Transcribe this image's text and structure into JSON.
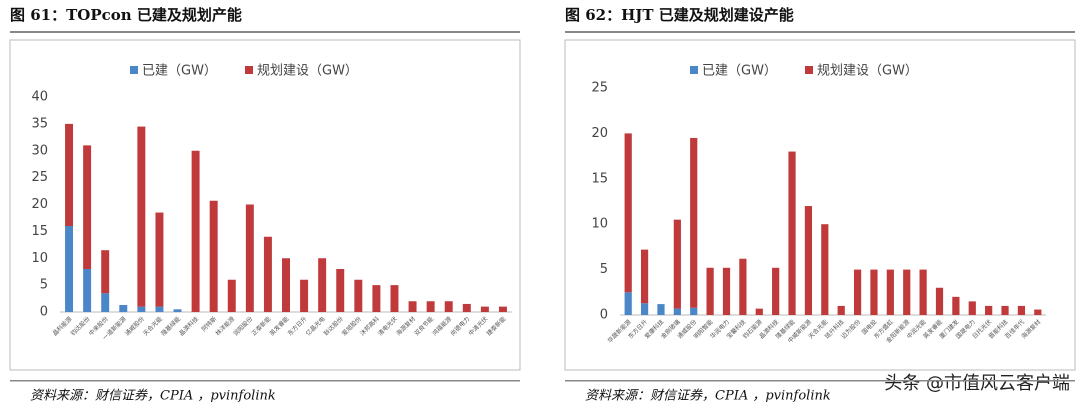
{
  "chart_data": [
    {
      "type": "bar",
      "stacked": true,
      "title": "图 61：TOPcon 已建及规划产能",
      "source": "资料来源：财信证券，CPIA ，pvinfolink",
      "categories": [
        "晶科能源",
        "钧达股份",
        "中来股份",
        "一道新能源",
        "通威股份",
        "天合光能",
        "隆基绿能",
        "晶澳科技",
        "阿特斯",
        "林洋能源",
        "润阳股份",
        "正泰新能",
        "英发睿能",
        "东方日升",
        "亿晶光电",
        "聆达股份",
        "爱旭股份",
        "沐邦高科",
        "清电光伏",
        "海源复材",
        "双良节能",
        "鸿禧能源",
        "尚德电力",
        "中清光伏",
        "捷泰新能"
      ],
      "series": [
        {
          "name": "已建（GW）",
          "color": "#4a86c8",
          "values": [
            16,
            8,
            3.5,
            1.3,
            1,
            1,
            0.5,
            0,
            0,
            0,
            0,
            0,
            0,
            0,
            0,
            0,
            0,
            0,
            0,
            0,
            0,
            0,
            0,
            0,
            0
          ]
        },
        {
          "name": "规划建设（GW）",
          "color": "#c0393b",
          "values": [
            19,
            23,
            8,
            0,
            33.5,
            17.5,
            0,
            30,
            20.7,
            6,
            20,
            14,
            10,
            6,
            10,
            8,
            6,
            5,
            5,
            2,
            2,
            2,
            1.5,
            1,
            1
          ]
        }
      ],
      "ylim": [
        0,
        40
      ],
      "yticks": [
        0,
        5,
        10,
        15,
        20,
        25,
        30,
        35,
        40
      ],
      "legend": "top-left"
    },
    {
      "type": "bar",
      "stacked": true,
      "title": "图 62：HJT 已建及规划建设产能",
      "source": "资料来源：财信证券，CPIA ，pvinfolink",
      "categories": [
        "华晟新能源",
        "东方日升",
        "爱康科技",
        "金刚玻璃",
        "通威股份",
        "明阳智能",
        "华润电力",
        "宝馨科技",
        "钧石能源",
        "晶澳科技",
        "隆基绿能",
        "中威新能源",
        "天合光能",
        "琏升科技",
        "迈为股份",
        "国电投",
        "东方盛虹",
        "金阳新能源",
        "中润光能",
        "英发睿能",
        "厦门建发",
        "国晟电力",
        "日托光伏",
        "晋能科技",
        "百佳年代",
        "海源复材"
      ],
      "series": [
        {
          "name": "已建（GW）",
          "color": "#4a86c8",
          "values": [
            2.5,
            1.3,
            1.2,
            0.7,
            0.8,
            0,
            0,
            0,
            0,
            0,
            0,
            0,
            0,
            0,
            0,
            0,
            0,
            0,
            0,
            0,
            0,
            0,
            0,
            0,
            0,
            0
          ]
        },
        {
          "name": "规划建设（GW）",
          "color": "#c0393b",
          "values": [
            17.5,
            5.9,
            0,
            9.8,
            18.7,
            5.2,
            5.2,
            6.2,
            0.7,
            5.2,
            18,
            12,
            10,
            1,
            5,
            5,
            5,
            5,
            5,
            3,
            2,
            1.5,
            1,
            1,
            1,
            0.6
          ]
        }
      ],
      "ylim": [
        0,
        25
      ],
      "yticks": [
        0,
        5,
        10,
        15,
        20,
        25
      ],
      "legend": "top-left"
    }
  ],
  "watermark": "头条 @市值风云客户端"
}
